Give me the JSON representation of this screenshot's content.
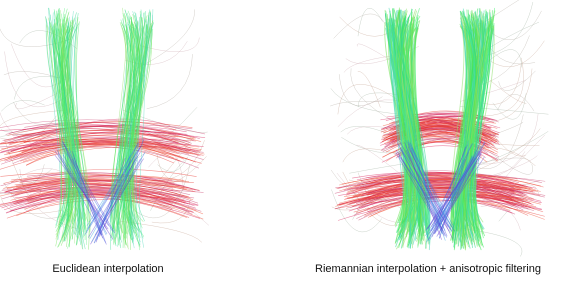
{
  "panels": [
    {
      "caption": "Euclidean interpolation"
    },
    {
      "caption": "Riemannian interpolation + anisotropic filtering"
    }
  ]
}
